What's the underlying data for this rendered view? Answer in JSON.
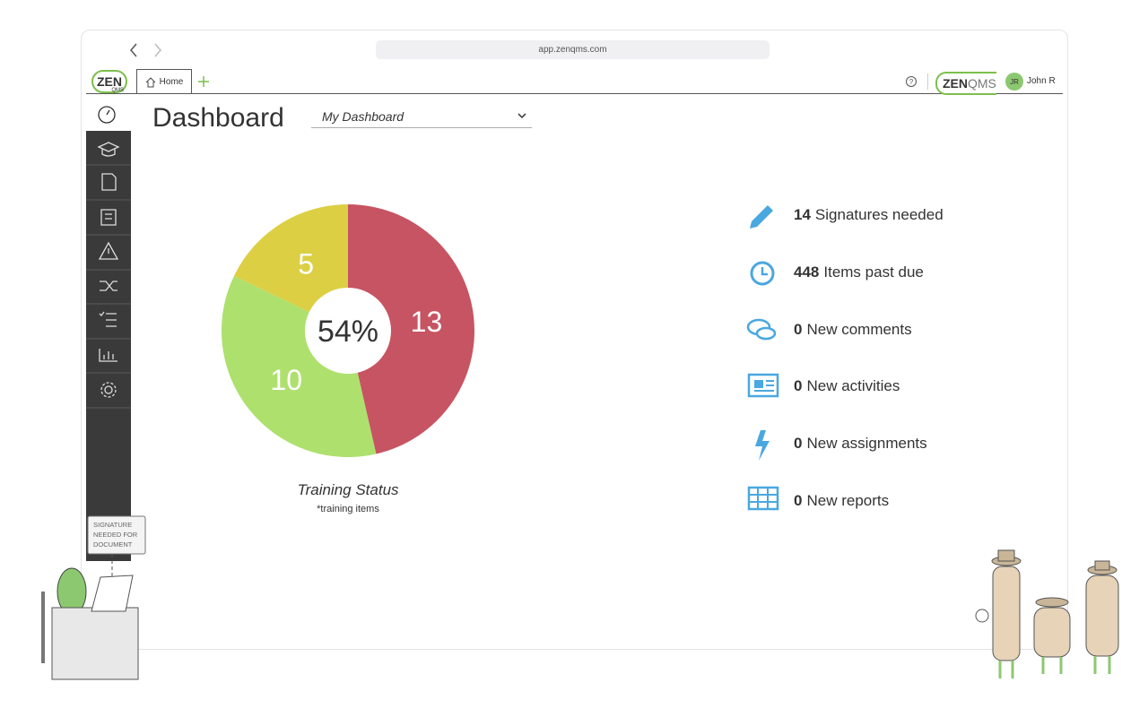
{
  "browser": {
    "url": "app.zenqms.com"
  },
  "header": {
    "logo": "ZEN",
    "logo_sub": "QMS",
    "tab": "Home",
    "brand": "ZEN",
    "brand_suffix": "QMS",
    "user_initials": "JR",
    "user_name": "John R"
  },
  "dashboard": {
    "title": "Dashboard",
    "selector": "My Dashboard"
  },
  "chart_data": {
    "type": "donut",
    "title": "Training Status",
    "subtitle": "*training items",
    "center_label": "54%",
    "values": [
      13,
      10,
      5
    ],
    "colors": [
      "#c75462",
      "#aee06e",
      "#dccf44"
    ]
  },
  "stats": [
    {
      "value": 14,
      "label": "Signatures needed"
    },
    {
      "value": 448,
      "label": "Items past due"
    },
    {
      "value": 0,
      "label": "New comments"
    },
    {
      "value": 0,
      "label": "New activities"
    },
    {
      "value": 0,
      "label": "New assignments"
    },
    {
      "value": 0,
      "label": "New reports"
    }
  ],
  "illustration": {
    "sign": [
      "SIGNATURE",
      "NEEDED FOR",
      "DOCUMENT"
    ]
  }
}
